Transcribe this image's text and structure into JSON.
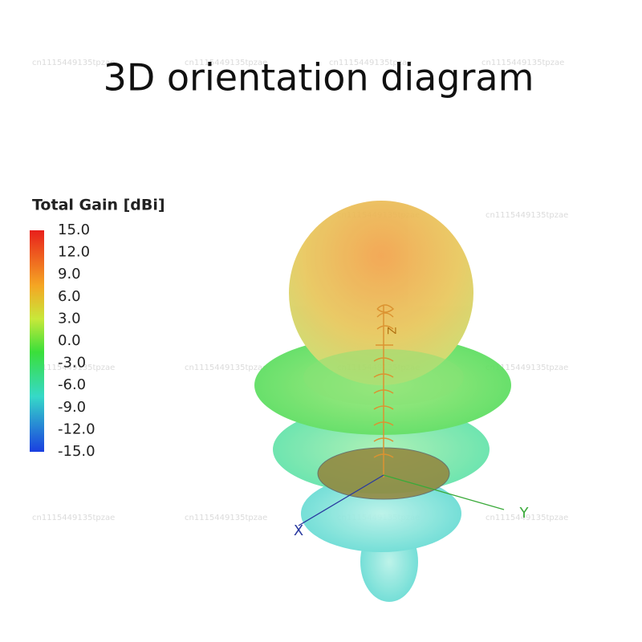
{
  "title": "3D orientation diagram",
  "colorbar": {
    "label": "Total Gain [dBi]",
    "ticks": [
      "15.0",
      "12.0",
      "9.0",
      "6.0",
      "3.0",
      "0.0",
      "-3.0",
      "-6.0",
      "-9.0",
      "-12.0",
      "-15.0"
    ]
  },
  "axes": {
    "x": "X",
    "y": "Y",
    "z": "Z"
  },
  "watermark": "cn1115449135tpzae"
}
